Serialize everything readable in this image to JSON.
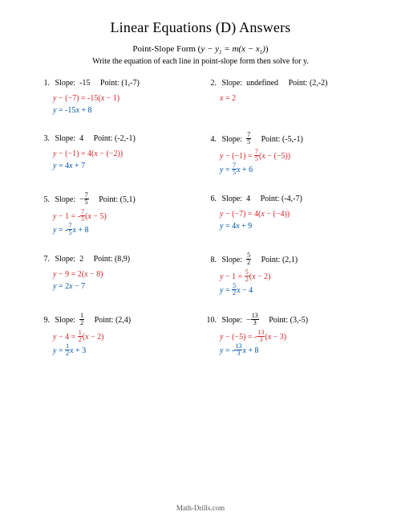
{
  "colors": {
    "text": "#000000",
    "red": "#d2232a",
    "blue": "#0055a5",
    "footer": "#555555",
    "background": "#ffffff"
  },
  "header": {
    "title": "Linear Equations (D) Answers",
    "subtitle_prefix": "Point-Slope Form (",
    "subtitle_formula": "y − y₁ = m(x − x₁)",
    "subtitle_suffix": ")",
    "instruction": "Write the equation of each line in point-slope form then solve for y."
  },
  "problems": [
    {
      "num": "1.",
      "slope_label": "Slope:",
      "slope": "-15",
      "point_label": "Point:",
      "point": "(1,-7)",
      "line1": "y − (−7) = -15(x − 1)",
      "line2": "y = -15x + 8"
    },
    {
      "num": "2.",
      "slope_label": "Slope:",
      "slope": "undefined",
      "point_label": "Point:",
      "point": "(2,-2)",
      "line1": "x = 2",
      "line2": ""
    },
    {
      "num": "3.",
      "slope_label": "Slope:",
      "slope": "4",
      "point_label": "Point:",
      "point": "(-2,-1)",
      "line1": "y − (−1) = 4(x − (−2))",
      "line2": "y = 4x + 7"
    },
    {
      "num": "4.",
      "slope_label": "Slope:",
      "slope": "7/5",
      "point_label": "Point:",
      "point": "(-5,-1)",
      "line1": "y − (−1) = 7/5(x − (−5))",
      "line2": "y = 7/5 x + 6"
    },
    {
      "num": "5.",
      "slope_label": "Slope:",
      "slope": "−7/5",
      "point_label": "Point:",
      "point": "(5,1)",
      "line1": "y − 1 = -7/5(x − 5)",
      "line2": "y = -7/5 x + 8"
    },
    {
      "num": "6.",
      "slope_label": "Slope:",
      "slope": "4",
      "point_label": "Point:",
      "point": "(-4,-7)",
      "line1": "y − (−7) = 4(x − (−4))",
      "line2": "y = 4x + 9"
    },
    {
      "num": "7.",
      "slope_label": "Slope:",
      "slope": "2",
      "point_label": "Point:",
      "point": "(8,9)",
      "line1": "y − 9 = 2(x − 8)",
      "line2": "y = 2x − 7"
    },
    {
      "num": "8.",
      "slope_label": "Slope:",
      "slope": "5/2",
      "point_label": "Point:",
      "point": "(2,1)",
      "line1": "y − 1 = 5/2(x − 2)",
      "line2": "y = 5/2 x − 4"
    },
    {
      "num": "9.",
      "slope_label": "Slope:",
      "slope": "1/2",
      "point_label": "Point:",
      "point": "(2,4)",
      "line1": "y − 4 = 1/2(x − 2)",
      "line2": "y = 1/2 x + 3"
    },
    {
      "num": "10.",
      "slope_label": "Slope:",
      "slope": "−13/3",
      "point_label": "Point:",
      "point": "(3,-5)",
      "line1": "y − (−5) = -13/3(x − 3)",
      "line2": "y = -13/3 x + 8"
    }
  ],
  "footer": "Math-Drills.com"
}
